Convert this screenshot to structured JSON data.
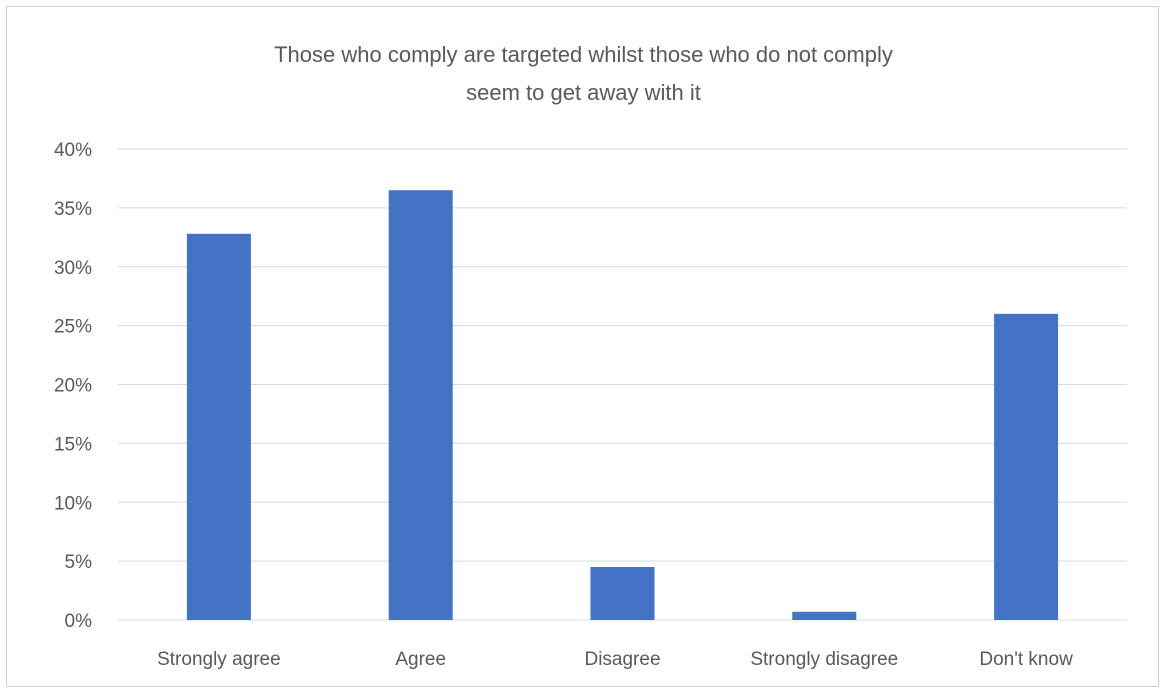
{
  "chart_data": {
    "type": "bar",
    "title": "Those who comply are targeted whilst those who do not comply seem to get away with it",
    "title_lines": [
      "Those who comply are targeted whilst those who do not comply",
      "seem to get away with it"
    ],
    "categories": [
      "Strongly agree",
      "Agree",
      "Disagree",
      "Strongly disagree",
      "Don't know"
    ],
    "values": [
      32.8,
      36.5,
      4.5,
      0.7,
      26.0
    ],
    "unit": "%",
    "ylim": [
      0,
      40
    ],
    "yticks": [
      0,
      5,
      10,
      15,
      20,
      25,
      30,
      35,
      40
    ],
    "ytick_labels": [
      "0%",
      "5%",
      "10%",
      "15%",
      "20%",
      "25%",
      "30%",
      "35%",
      "40%"
    ],
    "grid": true,
    "legend": "none",
    "xlabel": "",
    "ylabel": "",
    "colors": {
      "bar": "#4472C4",
      "grid": "#d9d9d9",
      "text": "#595959",
      "frame": "#d0d0d0"
    }
  }
}
